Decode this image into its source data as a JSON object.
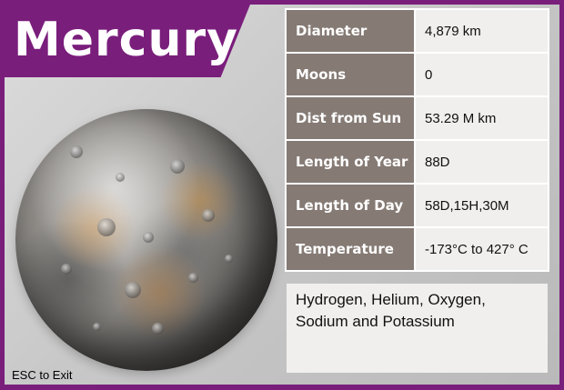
{
  "title": "Mercury",
  "facts": [
    {
      "label": "Diameter",
      "value": "4,879 km"
    },
    {
      "label": "Moons",
      "value": "0"
    },
    {
      "label": "Dist from Sun",
      "value": "53.29 M km"
    },
    {
      "label": "Length of Year",
      "value": "88D"
    },
    {
      "label": "Length of Day",
      "value": "58D,15H,30M"
    },
    {
      "label": "Temperature",
      "value": "-173°C to 427° C"
    }
  ],
  "composition": "Hydrogen, Helium, Oxygen, Sodium and Potassium",
  "exit_hint": "ESC to Exit",
  "colors": {
    "frame_purple": "#7a1e7c",
    "label_cell": "#857a74",
    "value_cell": "#f1efed"
  }
}
